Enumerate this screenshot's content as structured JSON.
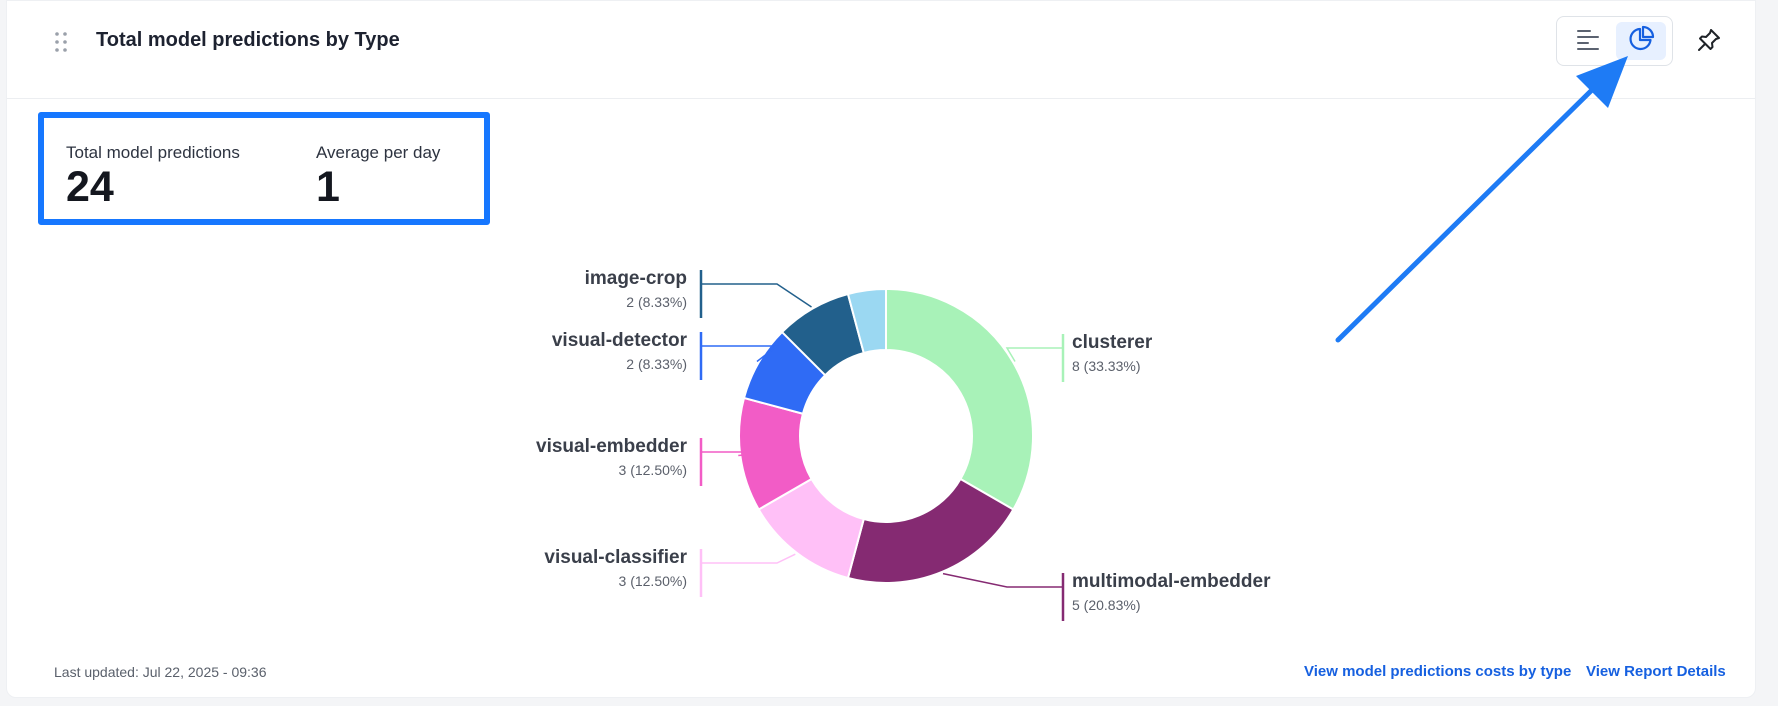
{
  "widget": {
    "title": "Total model predictions by Type",
    "drag_handle_icon": "drag-handle-icon",
    "view_toggle": {
      "options": [
        {
          "name": "list-view",
          "icon": "bar-list-icon",
          "selected": false
        },
        {
          "name": "pie-view",
          "icon": "pie-chart-icon",
          "selected": true
        }
      ]
    },
    "pin_icon": "pin-icon"
  },
  "stats": {
    "total_label": "Total model predictions",
    "total_value": "24",
    "avg_label": "Average per day",
    "avg_value": "1",
    "highlight_color": "#1677ff"
  },
  "chart_data": {
    "type": "pie",
    "donut": true,
    "slices": [
      {
        "label": "clusterer",
        "value": 8,
        "display": "8 (33.33%)",
        "color": "#a8f2b8"
      },
      {
        "label": "multimodal-embedder",
        "value": 5,
        "display": "5 (20.83%)",
        "color": "#852a72"
      },
      {
        "label": "visual-classifier",
        "value": 3,
        "display": "3 (12.50%)",
        "color": "#ffc0f7"
      },
      {
        "label": "visual-embedder",
        "value": 3,
        "display": "3 (12.50%)",
        "color": "#f25cc6"
      },
      {
        "label": "visual-detector",
        "value": 2,
        "display": "2 (8.33%)",
        "color": "#2f6bf5"
      },
      {
        "label": "image-crop",
        "value": 2,
        "display": "2 (8.33%)",
        "color": "#22608c"
      },
      {
        "label": "",
        "value": 1,
        "display": "",
        "color": "#9bd8f2"
      }
    ]
  },
  "footer": {
    "last_updated": "Last updated: Jul 22, 2025 - 09:36",
    "link_costs": "View model predictions costs by type",
    "link_details": "View Report Details"
  },
  "annotation": {
    "arrow_color": "#1e7bf5"
  }
}
